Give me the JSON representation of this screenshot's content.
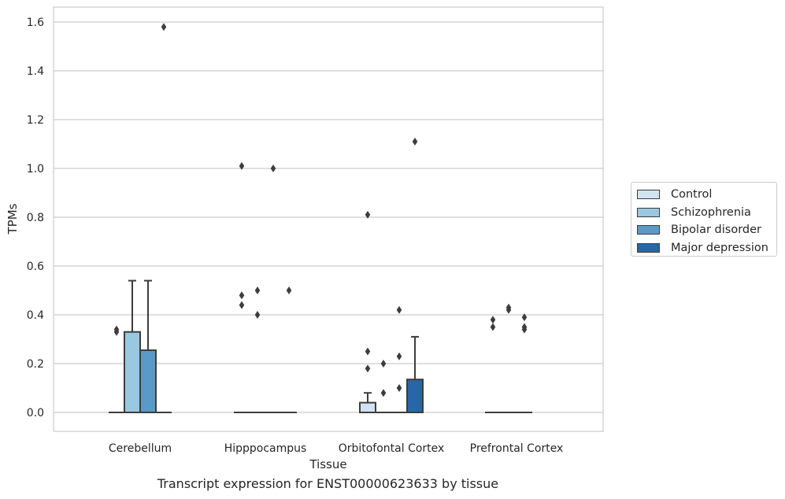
{
  "caption": "Transcript expression for ENST00000623633 by tissue",
  "chart_data": {
    "type": "box",
    "title": "",
    "xlabel": "Tissue",
    "ylabel": "TPMs",
    "ylim": [
      -0.08,
      1.66
    ],
    "yticks": [
      0.0,
      0.2,
      0.4,
      0.6,
      0.8,
      1.0,
      1.2,
      1.4,
      1.6
    ],
    "ytick_labels": [
      "0.0",
      "0.2",
      "0.4",
      "0.6",
      "0.8",
      "1.0",
      "1.2",
      "1.4",
      "1.6"
    ],
    "grid": "horizontal",
    "legend_position": "right",
    "categories": [
      "Cerebellum",
      "Hipppocampus",
      "Orbitofontal Cortex",
      "Prefrontal Cortex"
    ],
    "series": [
      {
        "name": "Control",
        "color": "#d1e2f2",
        "boxes": [
          {
            "q1": 0,
            "median": 0,
            "q3": 0,
            "whisker_low": 0,
            "whisker_high": 0,
            "outliers": [
              0.33,
              0.34
            ]
          },
          {
            "q1": 0,
            "median": 0,
            "q3": 0,
            "whisker_low": 0,
            "whisker_high": 0,
            "outliers": [
              0.44,
              0.48,
              1.01
            ]
          },
          {
            "q1": 0,
            "median": 0,
            "q3": 0.04,
            "whisker_low": 0,
            "whisker_high": 0.08,
            "outliers": [
              0.18,
              0.25,
              0.81
            ]
          },
          {
            "q1": 0,
            "median": 0,
            "q3": 0,
            "whisker_low": 0,
            "whisker_high": 0,
            "outliers": [
              0.35,
              0.38
            ]
          }
        ]
      },
      {
        "name": "Schizophrenia",
        "color": "#9ac8e0",
        "boxes": [
          {
            "q1": 0,
            "median": 0,
            "q3": 0.33,
            "whisker_low": 0,
            "whisker_high": 0.54,
            "outliers": []
          },
          {
            "q1": 0,
            "median": 0,
            "q3": 0,
            "whisker_low": 0,
            "whisker_high": 0,
            "outliers": [
              0.4,
              0.5
            ]
          },
          {
            "q1": 0,
            "median": 0,
            "q3": 0,
            "whisker_low": 0,
            "whisker_high": 0,
            "outliers": [
              0.08,
              0.2
            ]
          },
          {
            "q1": 0,
            "median": 0,
            "q3": 0,
            "whisker_low": 0,
            "whisker_high": 0,
            "outliers": [
              0.42,
              0.43
            ]
          }
        ]
      },
      {
        "name": "Bipolar disorder",
        "color": "#5a9ac8",
        "boxes": [
          {
            "q1": 0,
            "median": 0,
            "q3": 0.255,
            "whisker_low": 0,
            "whisker_high": 0.54,
            "outliers": []
          },
          {
            "q1": 0,
            "median": 0,
            "q3": 0,
            "whisker_low": 0,
            "whisker_high": 0,
            "outliers": [
              1.0
            ]
          },
          {
            "q1": 0,
            "median": 0,
            "q3": 0,
            "whisker_low": 0,
            "whisker_high": 0,
            "outliers": [
              0.1,
              0.23,
              0.42
            ]
          },
          {
            "q1": 0,
            "median": 0,
            "q3": 0,
            "whisker_low": 0,
            "whisker_high": 0,
            "outliers": [
              0.34,
              0.35,
              0.39
            ]
          }
        ]
      },
      {
        "name": "Major depression",
        "color": "#2767a8",
        "boxes": [
          {
            "q1": 0,
            "median": 0,
            "q3": 0,
            "whisker_low": 0,
            "whisker_high": 0,
            "outliers": [
              1.58
            ]
          },
          {
            "q1": 0,
            "median": 0,
            "q3": 0,
            "whisker_low": 0,
            "whisker_high": 0,
            "outliers": [
              0.5
            ]
          },
          {
            "q1": 0,
            "median": 0,
            "q3": 0.135,
            "whisker_low": 0,
            "whisker_high": 0.31,
            "outliers": [
              1.11
            ]
          },
          null
        ]
      }
    ]
  }
}
